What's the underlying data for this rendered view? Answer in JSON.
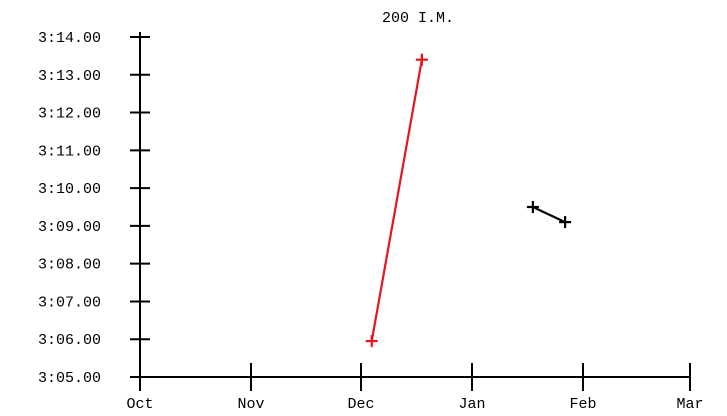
{
  "chart_data": {
    "type": "line",
    "title": "200 I.M.",
    "xlabel": "",
    "ylabel": "",
    "x_axis": {
      "tick_labels": [
        "Oct",
        "Nov",
        "Dec",
        "Jan",
        "Feb",
        "Mar"
      ],
      "range": [
        "Oct 1",
        "Mar 1"
      ]
    },
    "y_axis": {
      "tick_labels": [
        "3:05.00",
        "3:06.00",
        "3:07.00",
        "3:08.00",
        "3:09.00",
        "3:10.00",
        "3:11.00",
        "3:12.00",
        "3:13.00",
        "3:14.00"
      ],
      "range": [
        185,
        194
      ],
      "unit_note": "seconds (3:05.00 = 185)"
    },
    "grid": false,
    "series": [
      {
        "color": "#e8141e",
        "points": [
          {
            "x": "Dec 4",
            "y": 185.95
          },
          {
            "x": "Dec 18",
            "y": 193.4
          }
        ]
      },
      {
        "color": "#000000",
        "points": [
          {
            "x": "Jan 18",
            "y": 189.5
          },
          {
            "x": "Jan 27",
            "y": 189.1
          }
        ]
      }
    ]
  }
}
